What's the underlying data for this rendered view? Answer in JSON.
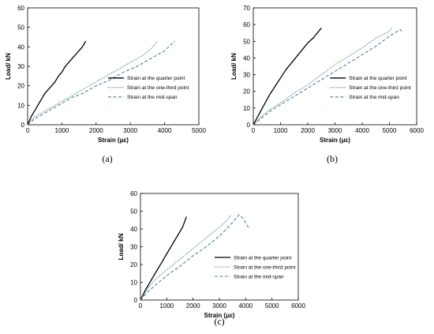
{
  "chart_data": [
    {
      "type": "line",
      "panel_label": "(a)",
      "xlabel": "Strain (με)",
      "ylabel": "Load/ kN",
      "xlim": [
        0,
        5000
      ],
      "ylim": [
        0,
        60
      ],
      "xticks": [
        "0",
        "1000",
        "2000",
        "3000",
        "4000",
        "5000"
      ],
      "yticks": [
        "0",
        "10",
        "20",
        "30",
        "40",
        "50",
        "60"
      ],
      "grid": false,
      "legend_position": "lower-right",
      "series": [
        {
          "name": "Strain at the quarter point",
          "style": "solid",
          "color": "#000000",
          "x": [
            0,
            100,
            200,
            300,
            400,
            500,
            600,
            700,
            800,
            900,
            1000,
            1100,
            1200,
            1300,
            1400,
            1500,
            1600,
            1700
          ],
          "y": [
            0,
            4,
            7,
            10,
            13,
            16,
            18,
            20,
            22,
            25,
            27,
            30,
            32,
            34,
            36,
            38,
            40,
            43
          ]
        },
        {
          "name": "Strain at the one-third point",
          "style": "dotted",
          "color": "#2e6b4e",
          "x": [
            0,
            200,
            400,
            600,
            800,
            1000,
            1300,
            1600,
            1900,
            2200,
            2500,
            2800,
            3100,
            3400,
            3600,
            3800
          ],
          "y": [
            0,
            4,
            6,
            8,
            10,
            12,
            15,
            18,
            21,
            24,
            27,
            30,
            33,
            36,
            39,
            43
          ]
        },
        {
          "name": "Strain at the mid-span",
          "style": "dashed",
          "color": "#4f7fa6",
          "x": [
            0,
            200,
            400,
            700,
            1000,
            1300,
            1600,
            2000,
            2400,
            2800,
            3200,
            3600,
            4000,
            4300
          ],
          "y": [
            0,
            3,
            5,
            8,
            11,
            14,
            16,
            20,
            23,
            27,
            30,
            34,
            38,
            43
          ]
        }
      ]
    },
    {
      "type": "line",
      "panel_label": "(b)",
      "xlabel": "Strain (με)",
      "ylabel": "Load/ kN",
      "xlim": [
        0,
        6000
      ],
      "ylim": [
        0,
        70
      ],
      "xticks": [
        "0",
        "1000",
        "2000",
        "3000",
        "4000",
        "5000",
        "6000"
      ],
      "yticks": [
        "0",
        "10",
        "20",
        "30",
        "40",
        "50",
        "60",
        "70"
      ],
      "grid": false,
      "legend_position": "lower-right",
      "series": [
        {
          "name": "Strain at the quarter point",
          "style": "solid",
          "color": "#000000",
          "x": [
            0,
            200,
            400,
            600,
            800,
            1000,
            1200,
            1400,
            1600,
            1800,
            2000,
            2200,
            2400,
            2500
          ],
          "y": [
            0,
            6,
            12,
            18,
            23,
            28,
            33,
            37,
            41,
            45,
            49,
            52,
            56,
            58
          ]
        },
        {
          "name": "Strain at the one-third point",
          "style": "dotted",
          "color": "#2e6b4e",
          "x": [
            0,
            300,
            600,
            1000,
            1500,
            2000,
            2500,
            3000,
            3500,
            4000,
            4500,
            5000,
            5100
          ],
          "y": [
            0,
            5,
            9,
            13,
            19,
            24,
            30,
            36,
            41,
            46,
            52,
            56,
            58
          ]
        },
        {
          "name": "Strain at the mid-span",
          "style": "dashed",
          "color": "#4f7fa6",
          "x": [
            0,
            300,
            600,
            1000,
            1500,
            2000,
            2500,
            3000,
            3500,
            4000,
            4500,
            5000,
            5400,
            5500
          ],
          "y": [
            0,
            4,
            8,
            12,
            17,
            22,
            27,
            32,
            37,
            42,
            47,
            53,
            57,
            55
          ]
        }
      ]
    },
    {
      "type": "line",
      "panel_label": "(c)",
      "xlabel": "Strain (με)",
      "ylabel": "Load/ kN",
      "xlim": [
        0,
        6000
      ],
      "ylim": [
        0,
        60
      ],
      "xticks": [
        "0",
        "1000",
        "2000",
        "3000",
        "4000",
        "5000",
        "6000"
      ],
      "yticks": [
        "0",
        "10",
        "20",
        "30",
        "40",
        "50",
        "60"
      ],
      "grid": false,
      "legend_position": "lower-right",
      "series": [
        {
          "name": "Strain at the quarter point",
          "style": "solid",
          "color": "#000000",
          "x": [
            0,
            200,
            400,
            600,
            800,
            1000,
            1200,
            1400,
            1600,
            1700,
            1750
          ],
          "y": [
            0,
            6,
            11,
            16,
            21,
            26,
            31,
            36,
            41,
            45,
            47
          ]
        },
        {
          "name": "Strain at the one-third point",
          "style": "dotted",
          "color": "#2e6b4e",
          "x": [
            0,
            300,
            600,
            1000,
            1500,
            2000,
            2500,
            3000,
            3300,
            3450
          ],
          "y": [
            0,
            7,
            12,
            17,
            23,
            29,
            35,
            41,
            45,
            48
          ]
        },
        {
          "name": "Strain at the mid-span",
          "style": "dashed",
          "color": "#4f7fa6",
          "x": [
            0,
            300,
            700,
            1100,
            1500,
            2000,
            2500,
            3000,
            3400,
            3750,
            3900,
            4100
          ],
          "y": [
            0,
            5,
            10,
            15,
            19,
            25,
            30,
            36,
            42,
            48,
            46,
            41
          ]
        }
      ]
    }
  ]
}
